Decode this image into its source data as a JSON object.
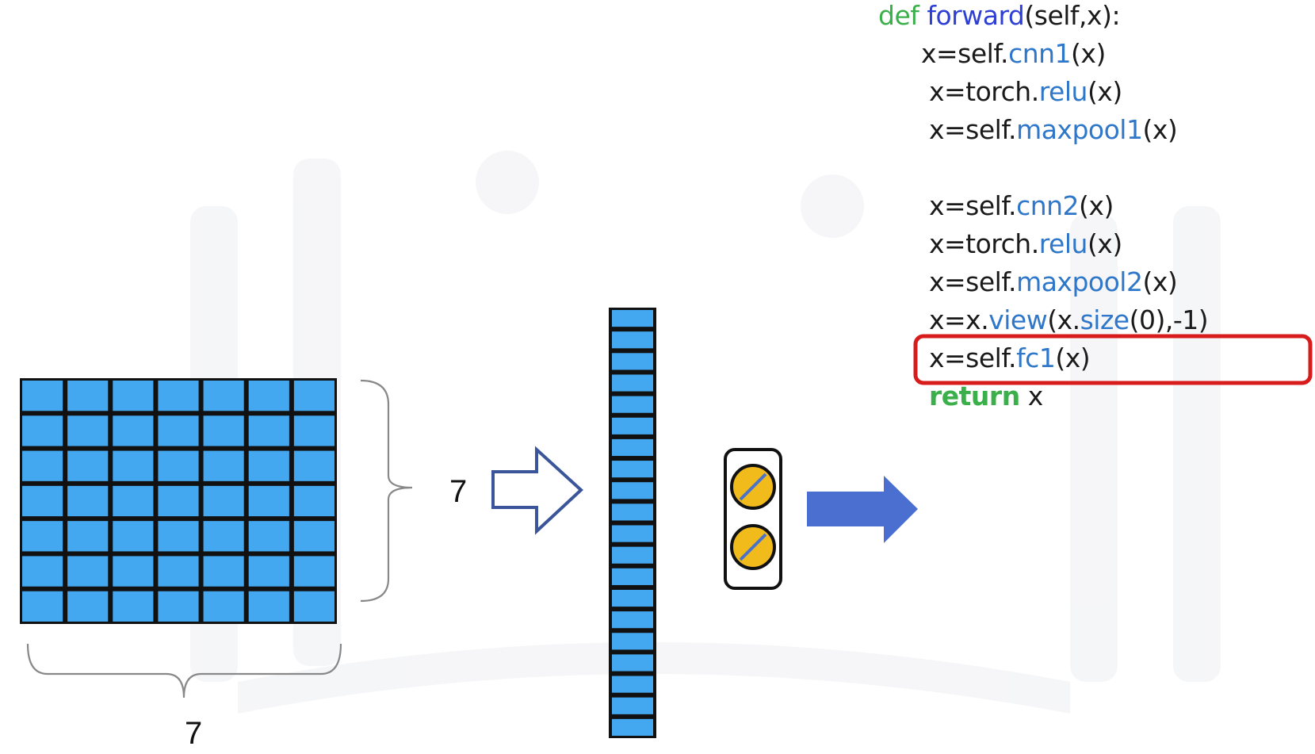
{
  "code": {
    "lines": [
      [
        {
          "t": "def ",
          "c": "kw-green"
        },
        {
          "t": "forward",
          "c": "kw-blue"
        },
        {
          "t": "(self,x):",
          "c": ""
        }
      ],
      [
        {
          "t": "x=self.",
          "c": ""
        },
        {
          "t": "cnn1",
          "c": "fn-blue"
        },
        {
          "t": "(x)",
          "c": ""
        }
      ],
      [
        {
          "t": "x=torch.",
          "c": ""
        },
        {
          "t": "relu",
          "c": "fn-blue"
        },
        {
          "t": "(x)",
          "c": ""
        }
      ],
      [
        {
          "t": "x=self.",
          "c": ""
        },
        {
          "t": "maxpool1",
          "c": "fn-blue"
        },
        {
          "t": "(x)",
          "c": ""
        }
      ],
      [
        {
          "t": "x=self.",
          "c": ""
        },
        {
          "t": "cnn2",
          "c": "fn-blue"
        },
        {
          "t": "(x)",
          "c": ""
        }
      ],
      [
        {
          "t": "x=torch.",
          "c": ""
        },
        {
          "t": "relu",
          "c": "fn-blue"
        },
        {
          "t": "(x)",
          "c": ""
        }
      ],
      [
        {
          "t": "x=self.",
          "c": ""
        },
        {
          "t": "maxpool2",
          "c": "fn-blue"
        },
        {
          "t": "(x)",
          "c": ""
        }
      ],
      [
        {
          "t": "x=x.",
          "c": ""
        },
        {
          "t": "view",
          "c": "fn-blue"
        },
        {
          "t": "(x.",
          "c": ""
        },
        {
          "t": "size",
          "c": "fn-blue"
        },
        {
          "t": "(0),-1)",
          "c": ""
        }
      ],
      [
        {
          "t": "x=self.",
          "c": ""
        },
        {
          "t": "fc1",
          "c": "fn-blue"
        },
        {
          "t": "(x)",
          "c": ""
        }
      ],
      [
        {
          "t": "return",
          "c": "kw-bold"
        },
        {
          "t": " x",
          "c": ""
        }
      ]
    ],
    "highlighted_line": 8
  },
  "labels": {
    "height": "7",
    "width": "7"
  },
  "colors": {
    "cell_fill": "#44a8f0",
    "cell_border": "#111111",
    "neuron_fill": "#f2bb1c",
    "neuron_slash": "#4a72c8",
    "outline_arrow": "#3a5599",
    "solid_arrow": "#4a6fd0",
    "highlight_box": "#d81c1c",
    "keyword_green": "#3bb04a",
    "keyword_blue": "#2d3fd4",
    "function_blue": "#2f77c9"
  },
  "grid": {
    "rows": 7,
    "cols": 7
  },
  "flattened_vector": {
    "cells": 20
  },
  "neurons": {
    "count": 2
  }
}
